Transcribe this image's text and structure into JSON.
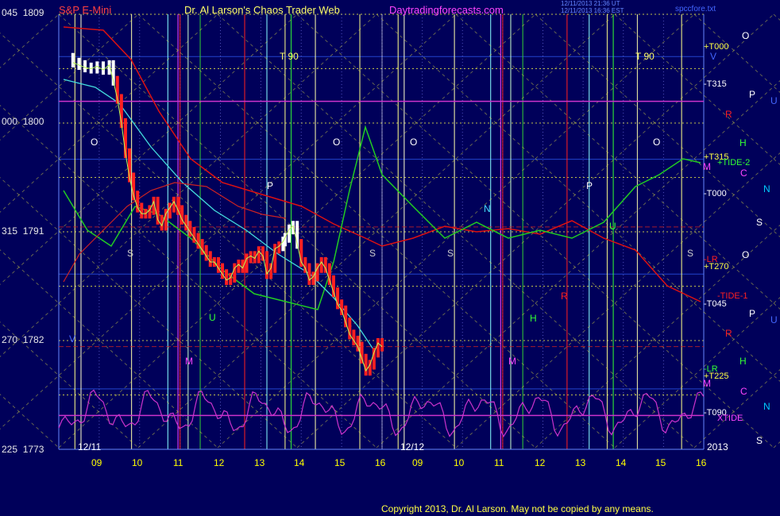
{
  "header": {
    "instrument": "S&P E-Mini",
    "title": "Dr. Al Larson's Chaos Trader Web",
    "site": "Daytradingforecasts.com",
    "timestamp_1": "12/11/2013 21:36 UT",
    "timestamp_2": "12/11/2013 16:36 EST",
    "filename": "spccfore.txt"
  },
  "footer": {
    "copyright": "Copyright 2013, Dr. Al Larson. May not be copied by any means."
  },
  "colors": {
    "background": "#00005a",
    "grid_yellow": "#ffff44",
    "price_red": "#ff2020",
    "price_white": "#ffffff",
    "tide_purple": "#cc33cc",
    "channel_red": "#dd1111",
    "channel_green": "#22cc22",
    "cyan": "#44dddd"
  },
  "y_axis_labels": [
    {
      "angle": "045",
      "price": "1809"
    },
    {
      "angle": "000",
      "price": "1800"
    },
    {
      "angle": "315",
      "price": "1791"
    },
    {
      "angle": "270",
      "price": "1782"
    },
    {
      "angle": "225",
      "price": "1773"
    }
  ],
  "x_axis": {
    "day1": "12/11",
    "day2": "12/12",
    "year": "2013",
    "hours_day1": [
      "09",
      "10",
      "11",
      "12",
      "13",
      "14",
      "15",
      "16"
    ],
    "hours_day2": [
      "09",
      "10",
      "11",
      "12",
      "13",
      "14",
      "15",
      "16"
    ]
  },
  "right_labels": {
    "T000_a": "+T000",
    "T315_a": "-T315",
    "T315_b": "+T315",
    "TIDE2": "+TIDE-2",
    "T000_b": "-T000",
    "LR_1": "-LR",
    "T270": "+T270",
    "TIDE1": "-TIDE-1",
    "T045": "-T045",
    "LR_2": "-LR",
    "T225": "+T225",
    "T090": "-T090",
    "XTIDE": "XTIDE"
  },
  "planet_letters": {
    "col1": [
      "O",
      "P",
      "O",
      "P",
      "S"
    ],
    "col2": [
      "V",
      "R",
      "H",
      "M",
      "C",
      "R",
      "H",
      "M",
      "C"
    ],
    "col3": [
      "U",
      "N",
      "U",
      "N"
    ]
  },
  "chart_labels": {
    "T90_a": "T   90",
    "T90_b": "T   90",
    "O": "O",
    "P": "P",
    "S": "S",
    "N": "N",
    "M": "M",
    "H": "H",
    "U": "U",
    "R": "R",
    "V": "V"
  },
  "chart_data": {
    "type": "line",
    "title": "S&P E-Mini",
    "ylim": [
      1773,
      1809
    ],
    "y_ticks": [
      1809,
      1800,
      1791,
      1782,
      1773
    ],
    "x_ticks_day1": [
      "09",
      "10",
      "11",
      "12",
      "13",
      "14",
      "15",
      "16"
    ],
    "x_ticks_day2": [
      "09",
      "10",
      "11",
      "12",
      "13",
      "14",
      "15",
      "16"
    ],
    "series": [
      {
        "kind": "price_bars",
        "x_hours": [
          8.35,
          8.5,
          8.65,
          8.8,
          8.95,
          9.1,
          9.25,
          9.35,
          9.45,
          9.55,
          9.65,
          9.75,
          9.85,
          9.95,
          10.05,
          10.15,
          10.25,
          10.35,
          10.45,
          10.55,
          10.65,
          10.75,
          10.85,
          10.95,
          11.05,
          11.15,
          11.25,
          11.35,
          11.45,
          11.55,
          11.65,
          11.75,
          11.85,
          11.95,
          12.05,
          12.15,
          12.25,
          12.35,
          12.45,
          12.55,
          12.65,
          12.75,
          12.85,
          12.95,
          13.05,
          13.15,
          13.25,
          13.35,
          13.45,
          13.55,
          13.6,
          13.7,
          13.8,
          13.9,
          14.0,
          14.1,
          14.2,
          14.3,
          14.4,
          14.5,
          14.6,
          14.7,
          14.8,
          14.9,
          15.0,
          15.1,
          15.2,
          15.3,
          15.4,
          15.5,
          15.6,
          15.7,
          15.8,
          15.9,
          16.0
        ],
        "values": [
          1805,
          1804.8,
          1804.6,
          1804.5,
          1804.7,
          1804.4,
          1804.8,
          1803.5,
          1802,
          1800,
          1797.5,
          1795.5,
          1794,
          1793,
          1792.5,
          1792.5,
          1792.8,
          1793.5,
          1792,
          1791.5,
          1792.5,
          1793,
          1793.5,
          1792.8,
          1792,
          1791.5,
          1791,
          1790.5,
          1790,
          1789.5,
          1789,
          1788.5,
          1788.5,
          1788,
          1787.5,
          1787,
          1787.2,
          1788,
          1788.3,
          1788,
          1788.8,
          1789,
          1788.8,
          1789.4,
          1789,
          1787.5,
          1788,
          1789.6,
          1789.8,
          1790.2,
          1790.5,
          1791.2,
          1791.5,
          1790,
          1788.5,
          1788,
          1787,
          1787.3,
          1788,
          1788.5,
          1788,
          1787,
          1786,
          1785,
          1784.5,
          1783.5,
          1782.5,
          1782,
          1781.5,
          1780.5,
          1779.5,
          1780,
          1781,
          1781.8,
          1781.5
        ]
      }
    ]
  }
}
